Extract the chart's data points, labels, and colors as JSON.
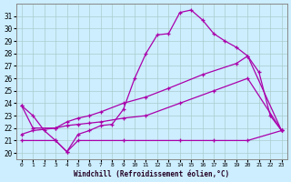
{
  "xlabel": "Windchill (Refroidissement éolien,°C)",
  "background_color": "#cceeff",
  "grid_color": "#aacccc",
  "line_color": "#aa00aa",
  "xlim": [
    -0.5,
    23.5
  ],
  "ylim": [
    19.5,
    32.0
  ],
  "xticks": [
    0,
    1,
    2,
    3,
    4,
    5,
    6,
    7,
    8,
    9,
    10,
    11,
    12,
    13,
    14,
    15,
    16,
    17,
    18,
    19,
    20,
    21,
    22,
    23
  ],
  "yticks": [
    20,
    21,
    22,
    23,
    24,
    25,
    26,
    27,
    28,
    29,
    30,
    31
  ],
  "line1_x": [
    0,
    1,
    2,
    3,
    4,
    5,
    6,
    7,
    8,
    9,
    10,
    11,
    12,
    13,
    14,
    15,
    16,
    17,
    18,
    19,
    20,
    21,
    22,
    23
  ],
  "line1_y": [
    23.8,
    23.0,
    21.8,
    21.0,
    20.1,
    21.5,
    21.8,
    22.2,
    22.3,
    23.5,
    26.0,
    28.0,
    29.5,
    29.6,
    31.3,
    31.5,
    30.7,
    29.6,
    29.0,
    28.5,
    27.8,
    26.5,
    23.0,
    21.8
  ],
  "line2_x": [
    0,
    1,
    3,
    4,
    5,
    6,
    7,
    9,
    11,
    13,
    16,
    19,
    20,
    23
  ],
  "line2_y": [
    23.8,
    22.0,
    22.0,
    22.5,
    22.8,
    23.0,
    23.3,
    24.0,
    24.5,
    25.2,
    26.3,
    27.2,
    27.8,
    21.8
  ],
  "line3_x": [
    0,
    1,
    3,
    4,
    5,
    6,
    7,
    9,
    11,
    14,
    17,
    20,
    23
  ],
  "line3_y": [
    21.5,
    21.8,
    22.0,
    22.2,
    22.3,
    22.4,
    22.5,
    22.8,
    23.0,
    24.0,
    25.0,
    26.0,
    21.8
  ],
  "line4_x": [
    0,
    3,
    4,
    5,
    9,
    14,
    17,
    20,
    23
  ],
  "line4_y": [
    21.0,
    21.0,
    20.1,
    21.0,
    21.0,
    21.0,
    21.0,
    21.0,
    21.8
  ],
  "marker": "+"
}
